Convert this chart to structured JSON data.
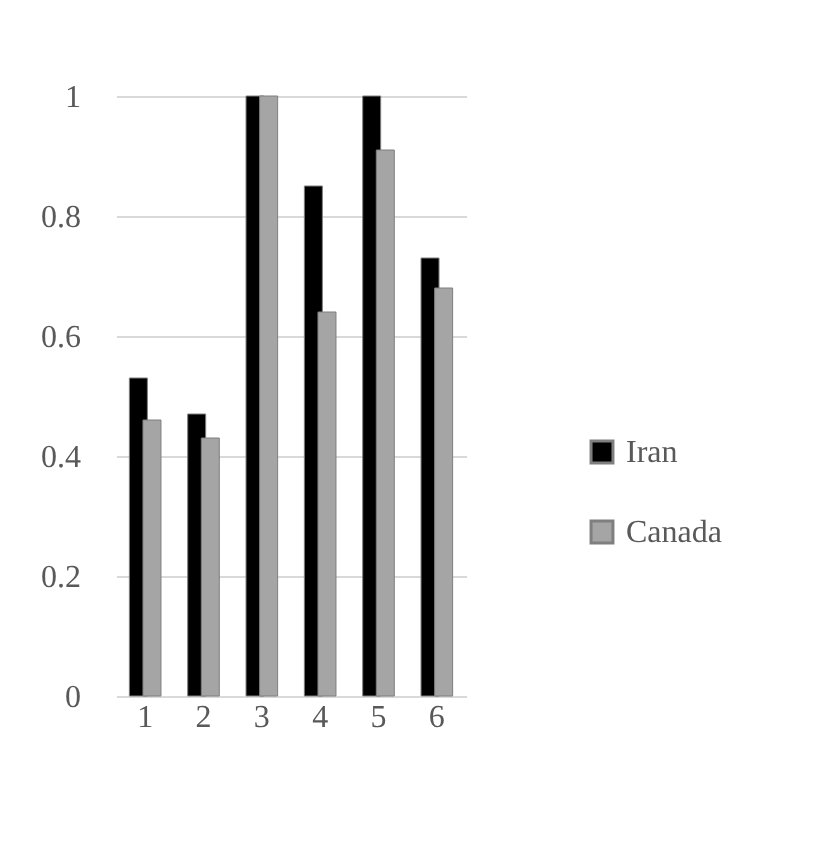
{
  "chart_data": {
    "type": "bar",
    "categories": [
      "1",
      "2",
      "3",
      "4",
      "5",
      "6"
    ],
    "series": [
      {
        "name": "Iran",
        "color": "#000000",
        "values": [
          0.53,
          0.47,
          1,
          0.85,
          1,
          0.73
        ]
      },
      {
        "name": "Canada",
        "color": "#a5a5a5",
        "values": [
          0.46,
          0.43,
          1,
          0.64,
          0.91,
          0.68
        ]
      }
    ],
    "ylim": [
      0,
      1
    ],
    "yticks": [
      0,
      0.2,
      0.4,
      0.6,
      0.8,
      1
    ],
    "grid": "y",
    "legend": "right"
  }
}
